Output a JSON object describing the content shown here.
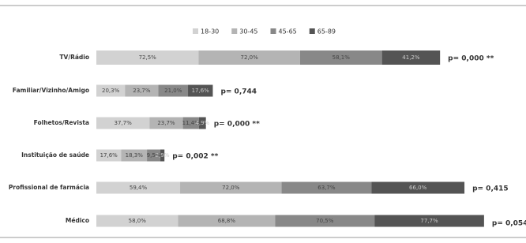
{
  "chart_data": {
    "type": "stacked_bar_horizontal",
    "categories": [
      "TV/Rádio",
      "Familiar/Vizinho/Amigo",
      "Folhetos/Revista",
      "Instituição de saúde",
      "Profissional de farmácia",
      "Médico"
    ],
    "series": [
      {
        "name": "18-30",
        "color": "#d2d2d2",
        "values": [
          72.5,
          20.3,
          37.7,
          17.6,
          59.4,
          58.0
        ],
        "value_labels": [
          "72,5%",
          "20,3%",
          "37,7%",
          "17,6%",
          "59,4%",
          "58,0%"
        ]
      },
      {
        "name": "30-45",
        "color": "#b4b4b4",
        "values": [
          72.0,
          23.7,
          23.7,
          18.3,
          72.0,
          68.8
        ],
        "value_labels": [
          "72,0%",
          "23,7%",
          "23,7%",
          "18,3%",
          "72,0%",
          "68,8%"
        ]
      },
      {
        "name": "45-65",
        "color": "#888888",
        "values": [
          58.1,
          21.0,
          11.4,
          9.5,
          63.7,
          70.5
        ],
        "value_labels": [
          "58,1%",
          "21,0%",
          "11,4%",
          "9,5%",
          "63,7%",
          "70,5%"
        ]
      },
      {
        "name": "65-89",
        "color": "#545454",
        "values": [
          41.2,
          17.6,
          4.9,
          2.9,
          66.0,
          77.7
        ],
        "value_labels": [
          "41,2%",
          "17,6%",
          "4,9%",
          "2,9%",
          "66,0%",
          "77,7%"
        ]
      }
    ],
    "annotations": [
      "p= 0,000 **",
      "p= 0,744",
      "p= 0,000 **",
      "p= 0,002 **",
      "p= 0,415",
      "p= 0,054"
    ],
    "legend": "top"
  }
}
